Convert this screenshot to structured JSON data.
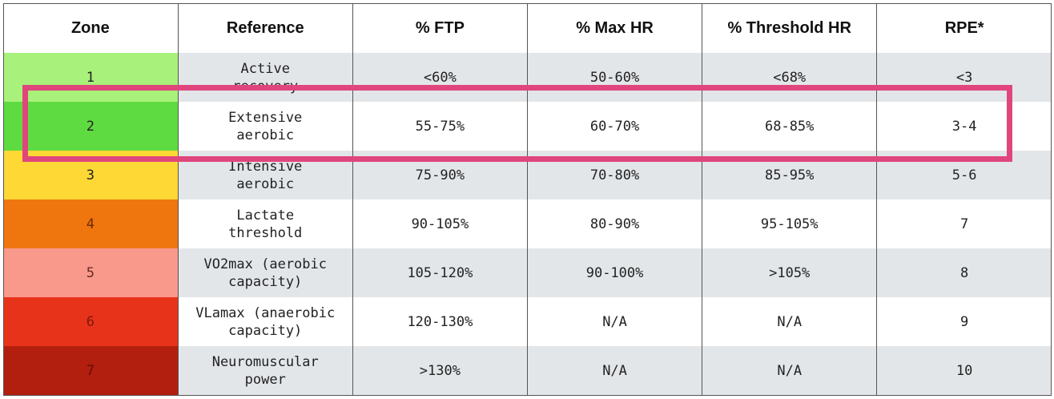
{
  "table": {
    "header": [
      "Zone",
      "Reference",
      "% FTP",
      "% Max HR",
      "% Threshold HR",
      "RPE*"
    ],
    "rows": [
      [
        "1",
        "Active\nrecovery",
        "<60%",
        "50-60%",
        "<68%",
        "<3"
      ],
      [
        "2",
        "Extensive\naerobic",
        "55-75%",
        "60-70%",
        "68-85%",
        "3-4"
      ],
      [
        "3",
        "Intensive\naerobic",
        "75-90%",
        "70-80%",
        "85-95%",
        "5-6"
      ],
      [
        "4",
        "Lactate\nthreshold",
        "90-105%",
        "80-90%",
        "95-105%",
        "7"
      ],
      [
        "5",
        "VO2max (aerobic\ncapacity)",
        "105-120%",
        "90-100%",
        ">105%",
        "8"
      ],
      [
        "6",
        "VLamax (anaerobic\ncapacity)",
        "120-130%",
        "N/A",
        "N/A",
        "9"
      ],
      [
        "7",
        "Neuromuscular\npower",
        ">130%",
        "N/A",
        "N/A",
        "10"
      ]
    ]
  }
}
